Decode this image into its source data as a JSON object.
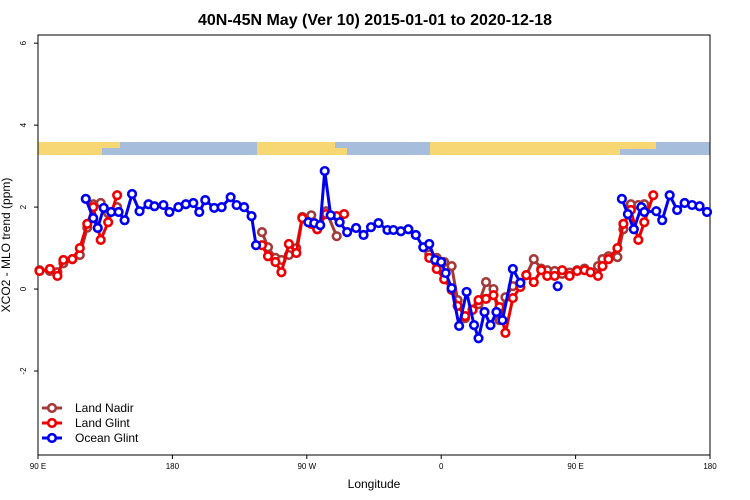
{
  "chart_data": {
    "type": "line",
    "title": "40N-45N May (Ver 10)   2015-01-01 to 2020-12-18",
    "xlabel": "Longitude",
    "ylabel": "XCO2 - MLO trend (ppm)",
    "xlim": [
      90,
      540
    ],
    "xticks": [
      {
        "value": 90,
        "label": "90 E"
      },
      {
        "value": 180,
        "label": "180"
      },
      {
        "value": 270,
        "label": "90 W"
      },
      {
        "value": 360,
        "label": "0"
      },
      {
        "value": 450,
        "label": "90 E"
      },
      {
        "value": 540,
        "label": "180"
      }
    ],
    "ylim": [
      -4.05,
      6.2
    ],
    "yticks": [
      -2,
      0,
      2,
      4,
      6
    ],
    "legend": "bottom-left",
    "series": [
      {
        "name": "Land Nadir",
        "color": "#a33a3a",
        "x": [
          91,
          98,
          103,
          107,
          113,
          118,
          123,
          127,
          132,
          137,
          143,
          null,
          240,
          244,
          249,
          253,
          258,
          263,
          267,
          273,
          277,
          283,
          290,
          null,
          352,
          357,
          362,
          367,
          371,
          376,
          381,
          385,
          390,
          395,
          399,
          403,
          408,
          413,
          417,
          422,
          427,
          431,
          436,
          441,
          446,
          451,
          456,
          460,
          465,
          468,
          472,
          478,
          482,
          487,
          492,
          496
        ],
        "values": [
          0.46,
          0.44,
          0.41,
          0.63,
          0.73,
          0.83,
          1.5,
          2.07,
          2.1,
          1.85,
          2.0,
          null,
          1.39,
          1.02,
          0.76,
          0.71,
          0.83,
          1.0,
          1.76,
          1.8,
          1.46,
          1.9,
          1.29,
          null,
          0.85,
          0.76,
          0.66,
          0.56,
          -0.27,
          -0.71,
          -0.5,
          -0.37,
          0.17,
          0.0,
          -0.76,
          -0.2,
          0.07,
          0.15,
          0.34,
          0.73,
          0.5,
          0.46,
          0.44,
          0.37,
          0.4,
          0.46,
          0.5,
          0.41,
          0.56,
          0.73,
          0.8,
          0.78,
          1.46,
          2.07,
          2.05,
          2.07
        ]
      },
      {
        "name": "Land Glint",
        "color": "#ee0000",
        "x": [
          91,
          98,
          103,
          107,
          113,
          118,
          123,
          127,
          132,
          137,
          143,
          null,
          240,
          244,
          249,
          253,
          258,
          263,
          267,
          273,
          277,
          283,
          290,
          295,
          null,
          352,
          357,
          362,
          367,
          371,
          376,
          381,
          385,
          390,
          395,
          399,
          403,
          408,
          413,
          417,
          422,
          427,
          431,
          436,
          441,
          446,
          451,
          456,
          460,
          465,
          468,
          472,
          478,
          482,
          487,
          492,
          496,
          502
        ],
        "values": [
          0.44,
          0.49,
          0.32,
          0.71,
          0.73,
          1.0,
          1.59,
          2.0,
          1.2,
          1.63,
          2.29,
          null,
          1.07,
          0.8,
          0.66,
          0.41,
          1.1,
          0.88,
          1.73,
          1.59,
          1.46,
          1.83,
          1.78,
          1.83,
          null,
          0.76,
          0.49,
          0.24,
          -0.02,
          -0.41,
          -0.66,
          -0.51,
          -0.27,
          -0.24,
          -0.15,
          -0.44,
          -1.07,
          -0.22,
          0.05,
          0.34,
          0.17,
          0.46,
          0.32,
          0.32,
          0.46,
          0.32,
          0.44,
          0.46,
          0.41,
          0.32,
          0.56,
          0.73,
          1.0,
          1.59,
          1.93,
          1.2,
          1.63,
          2.29
        ]
      },
      {
        "name": "Ocean Glint",
        "color": "#0000ee",
        "x": [
          122,
          127,
          130,
          134,
          139,
          144,
          148,
          153,
          158,
          164,
          168,
          174,
          178,
          184,
          189,
          194,
          198,
          202,
          208,
          213,
          219,
          223,
          228,
          233,
          236,
          null,
          271,
          275,
          279,
          282,
          286,
          292,
          297,
          303,
          308,
          313,
          318,
          324,
          328,
          333,
          338,
          343,
          348,
          352,
          356,
          360,
          363,
          367,
          372,
          377,
          382,
          385,
          389,
          393,
          397,
          401,
          408,
          413,
          null,
          438,
          null,
          481,
          485,
          489,
          494,
          496,
          504,
          508,
          513,
          518,
          523,
          528,
          533,
          538
        ],
        "values": [
          2.2,
          1.73,
          1.49,
          1.98,
          1.88,
          1.88,
          1.68,
          2.32,
          1.9,
          2.07,
          2.02,
          2.05,
          1.88,
          2.0,
          2.07,
          2.1,
          1.88,
          2.17,
          1.98,
          2.0,
          2.24,
          2.05,
          2.0,
          1.78,
          1.07,
          null,
          1.63,
          1.61,
          1.56,
          2.88,
          1.8,
          1.63,
          1.39,
          1.49,
          1.32,
          1.51,
          1.61,
          1.44,
          1.44,
          1.41,
          1.46,
          1.32,
          1.02,
          1.1,
          0.71,
          0.66,
          0.39,
          0.02,
          -0.9,
          -0.07,
          -0.88,
          -1.2,
          -0.56,
          -0.88,
          -0.56,
          -0.76,
          0.49,
          0.15,
          null,
          0.07,
          null,
          2.2,
          1.83,
          1.46,
          2.0,
          1.88,
          1.9,
          1.68,
          2.29,
          1.93,
          2.1,
          2.05,
          2.02,
          1.88
        ]
      }
    ]
  }
}
